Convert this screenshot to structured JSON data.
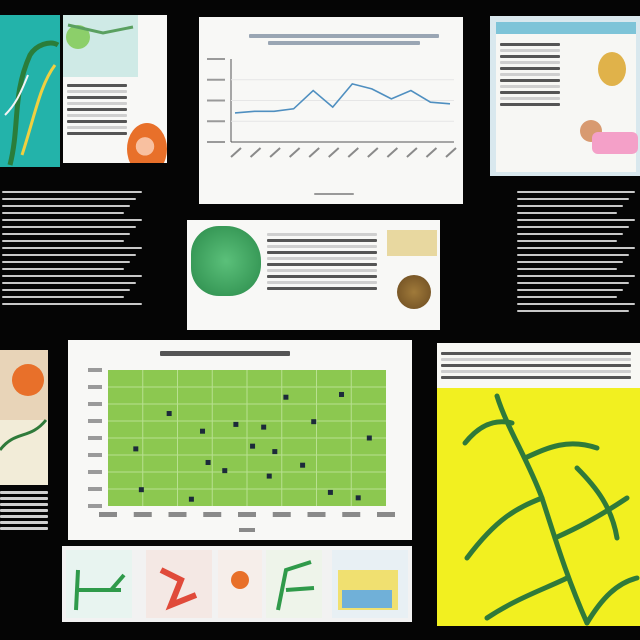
{
  "collage": {
    "background": "#050505",
    "panels": [
      {
        "id": "plant-card-top-left"
      },
      {
        "id": "line-chart-top-center"
      },
      {
        "id": "article-top-right"
      },
      {
        "id": "text-column-left"
      },
      {
        "id": "specimen-sheet-center"
      },
      {
        "id": "text-column-right"
      },
      {
        "id": "illustration-mid-left"
      },
      {
        "id": "scatter-chart-center"
      },
      {
        "id": "vine-poster-right"
      },
      {
        "id": "thumbnail-strip-bottom"
      }
    ]
  },
  "colors": {
    "line_series": "#4f8fc0",
    "scatter_bg": "#8cc850",
    "scatter_point": "#1c2a3a",
    "vine_bg": "#f2f020",
    "vine_stem": "#2f7a3a",
    "plant_teal": "#3cb8b0",
    "orange_fruit": "#e8702a"
  },
  "line_chart": {
    "values": [
      0.35,
      0.37,
      0.37,
      0.4,
      0.62,
      0.42,
      0.7,
      0.64,
      0.52,
      0.62,
      0.48,
      0.46
    ],
    "ylim": [
      0,
      1
    ]
  },
  "scatter_chart": {
    "points": [
      [
        0.1,
        0.42
      ],
      [
        0.12,
        0.12
      ],
      [
        0.3,
        0.05
      ],
      [
        0.34,
        0.55
      ],
      [
        0.42,
        0.26
      ],
      [
        0.46,
        0.6
      ],
      [
        0.52,
        0.44
      ],
      [
        0.56,
        0.58
      ],
      [
        0.6,
        0.4
      ],
      [
        0.64,
        0.8
      ],
      [
        0.7,
        0.3
      ],
      [
        0.74,
        0.62
      ],
      [
        0.8,
        0.1
      ],
      [
        0.84,
        0.82
      ],
      [
        0.9,
        0.06
      ],
      [
        0.36,
        0.32
      ],
      [
        0.58,
        0.22
      ],
      [
        0.22,
        0.68
      ],
      [
        0.94,
        0.5
      ]
    ],
    "xlim": [
      0,
      1
    ],
    "ylim": [
      0,
      1
    ]
  }
}
